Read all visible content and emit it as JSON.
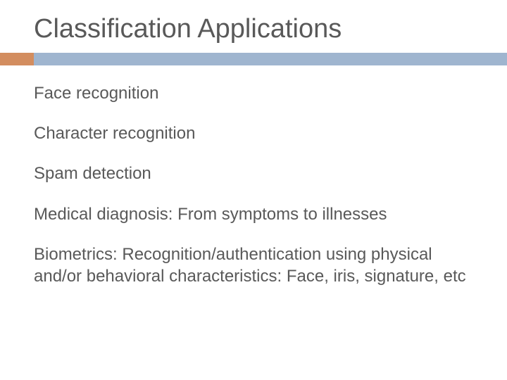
{
  "slide": {
    "title": "Classification Applications",
    "items": [
      "Face recognition",
      "Character recognition",
      "Spam detection",
      "Medical diagnosis: From symptoms to illnesses",
      "Biometrics: Recognition/authentication using physical and/or behavioral characteristics: Face, iris, signature, etc"
    ]
  },
  "colors": {
    "text": "#595959",
    "accent_bar": "#d38d5f",
    "main_bar": "#9fb5cf",
    "background": "#ffffff"
  },
  "typography": {
    "title_fontsize": 38,
    "body_fontsize": 24,
    "font_family": "Arial"
  },
  "layout": {
    "divider_height": 18,
    "accent_width": 48,
    "content_left_padding": 48,
    "item_spacing": 26
  }
}
